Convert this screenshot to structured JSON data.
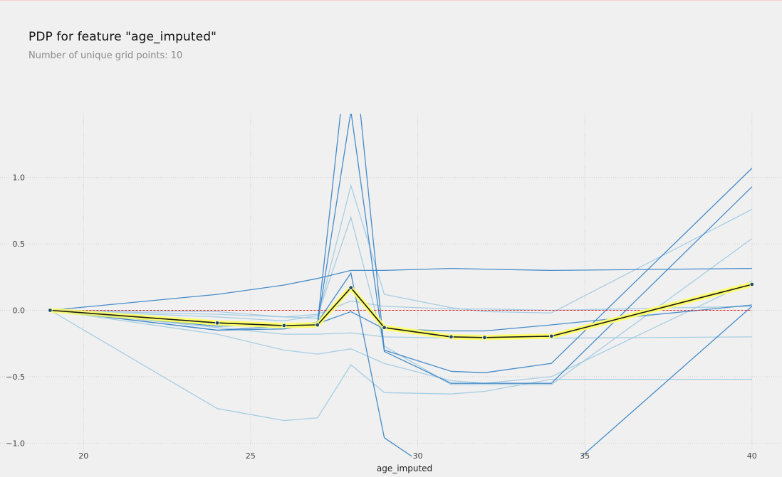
{
  "title": "PDP for feature \"age_imputed\"",
  "subtitle": "Number of unique grid points: 10",
  "colors": {
    "background": "#f0f0f0",
    "grid": "#cfcfcf",
    "ice_dark": "#3d86c6",
    "ice_light": "#9ecae1",
    "pdp_line": "#1a1a1a",
    "pdp_band": "#ffff66",
    "pdp_marker": "#1f4e5f",
    "baseline": "#e31a1c"
  },
  "chart_data": {
    "type": "line",
    "title": "PDP for feature \"age_imputed\"",
    "subtitle": "Number of unique grid points: 10",
    "xlabel": "age_imputed",
    "ylabel": "",
    "xlim": [
      17.5,
      40.9
    ],
    "ylim": [
      -1.1,
      1.48
    ],
    "xticks": [
      20,
      25,
      30,
      35,
      40
    ],
    "yticks": [
      1.0,
      0.5,
      0.0,
      -0.5,
      -1.0
    ],
    "ytick_labels": [
      "1.0",
      "0.5",
      "0.0",
      "−0.5",
      "−1.0"
    ],
    "grid": true,
    "x": [
      19,
      24,
      26,
      27,
      28,
      29,
      31,
      32,
      34,
      40
    ],
    "baseline": 0.0,
    "pdp": {
      "values": [
        0.0,
        -0.095,
        -0.115,
        -0.11,
        0.17,
        -0.13,
        -0.2,
        -0.205,
        -0.195,
        0.195
      ],
      "band_upper": [
        0.005,
        -0.075,
        -0.095,
        -0.09,
        0.19,
        -0.11,
        -0.18,
        -0.185,
        -0.175,
        0.215
      ],
      "band_lower": [
        -0.005,
        -0.115,
        -0.135,
        -0.13,
        0.15,
        -0.15,
        -0.22,
        -0.225,
        -0.215,
        0.175
      ]
    },
    "ice_series": [
      {
        "tone": "dark",
        "values": [
          0.0,
          0.12,
          0.19,
          0.24,
          0.3,
          0.3,
          0.315,
          0.31,
          0.3,
          0.315
        ]
      },
      {
        "tone": "dark",
        "values": [
          0.0,
          -0.1,
          -0.12,
          -0.1,
          2.2,
          -0.3,
          -0.46,
          -0.47,
          -0.4,
          1.07
        ]
      },
      {
        "tone": "dark",
        "values": [
          0.0,
          -0.12,
          -0.11,
          -0.11,
          1.5,
          -0.31,
          -0.55,
          -0.55,
          -0.55,
          0.93
        ]
      },
      {
        "tone": "dark",
        "values": [
          0.0,
          -0.15,
          -0.14,
          -0.1,
          -0.01,
          -0.14,
          -0.155,
          -0.155,
          -0.11,
          0.04
        ]
      },
      {
        "tone": "dark",
        "values": [
          0.0,
          -0.15,
          -0.12,
          -0.09,
          0.28,
          -0.96,
          -1.3,
          -1.3,
          -1.3,
          0.03
        ]
      },
      {
        "tone": "light",
        "values": [
          0.0,
          -0.74,
          -0.83,
          -0.81,
          -0.41,
          -0.62,
          -0.63,
          -0.61,
          -0.52,
          -0.52
        ]
      },
      {
        "tone": "light",
        "values": [
          0.0,
          -0.18,
          -0.3,
          -0.33,
          -0.29,
          -0.4,
          -0.53,
          -0.55,
          -0.5,
          0.22
        ]
      },
      {
        "tone": "light",
        "values": [
          0.0,
          -0.13,
          -0.18,
          -0.18,
          -0.17,
          -0.2,
          -0.21,
          -0.21,
          -0.21,
          -0.2
        ]
      },
      {
        "tone": "light",
        "values": [
          0.0,
          -0.01,
          -0.05,
          -0.06,
          0.94,
          0.12,
          0.02,
          -0.01,
          -0.02,
          0.76
        ]
      },
      {
        "tone": "light",
        "values": [
          0.0,
          -0.05,
          -0.08,
          -0.04,
          0.7,
          -0.27,
          -0.56,
          -0.56,
          -0.56,
          0.54
        ]
      },
      {
        "tone": "light",
        "values": [
          0.0,
          -0.03,
          -0.05,
          -0.03,
          0.07,
          0.03,
          0.01,
          0.01,
          0.0,
          0.03
        ]
      }
    ]
  }
}
